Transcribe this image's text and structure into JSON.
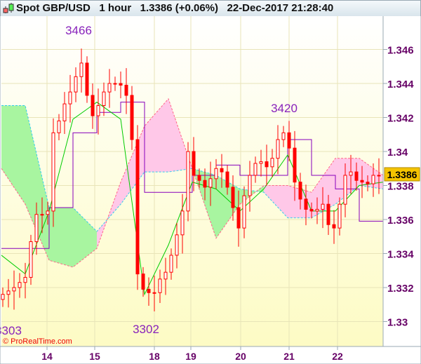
{
  "header": {
    "instrument": "Spot GBP/USD",
    "timeframe": "1 hour",
    "price": "1.3386 (+0.06%)",
    "datetime": "22-Dec-2017 21:28:40",
    "text": "Spot GBP/USD   1 hour   1.3386 (+0.06%)   22-Dec-2017 21:28:40"
  },
  "watermark": "© ProRealTime.com",
  "colors": {
    "up": "#00cc00",
    "down": "#ff0000",
    "cloud_green": "#a8f5a0",
    "cloud_pink": "#ffc8e8",
    "span_a": "#33ccee",
    "span_b": "#ff6688",
    "purple": "#8800bb",
    "green_line": "#00cc00",
    "price_tag": "#f5c400",
    "axis_text": "#660066",
    "annotation": "#8822bb"
  },
  "chart_data": {
    "type": "candlestick",
    "title": "Spot GBP/USD",
    "x_ticks": [
      "14",
      "15",
      "18",
      "19",
      "20",
      "21",
      "22"
    ],
    "y_ticks": [
      "1.346",
      "1.344",
      "1.342",
      "1.34",
      "1.338",
      "1.336",
      "1.334",
      "1.332",
      "1.33"
    ],
    "ylim": [
      1.3282,
      1.3475
    ],
    "grid": true,
    "closes": [
      1.3316,
      1.3318,
      1.332,
      1.3323,
      1.3326,
      1.3347,
      1.3363,
      1.3363,
      1.3365,
      1.3411,
      1.3418,
      1.3428,
      1.3435,
      1.3444,
      1.3452,
      1.3433,
      1.3421,
      1.3427,
      1.3435,
      1.344,
      1.344,
      1.3439,
      1.3433,
      1.3407,
      1.3328,
      1.3319,
      1.3317,
      1.3317,
      1.3325,
      1.3329,
      1.3339,
      1.3351,
      1.3365,
      1.34,
      1.3386,
      1.3383,
      1.3379,
      1.3384,
      1.339,
      1.3388,
      1.3379,
      1.3367,
      1.3355,
      1.3374,
      1.3386,
      1.3393,
      1.3394,
      1.3391,
      1.3396,
      1.3407,
      1.3411,
      1.3402,
      1.3382,
      1.3372,
      1.3366,
      1.3365,
      1.3366,
      1.3369,
      1.3357,
      1.3355,
      1.3369,
      1.3386,
      1.3388,
      1.3383,
      1.3382,
      1.3381,
      1.3386,
      1.3386
    ],
    "ichimoku": {
      "span_a": [
        1.3427,
        1.3427,
        1.3367,
        1.3367,
        1.3353,
        1.3369,
        1.3388,
        1.3388,
        1.339,
        1.3386,
        1.3378,
        1.3376,
        1.3361,
        1.3361,
        1.3369,
        1.338,
        1.3378
      ],
      "span_b": [
        1.339,
        1.3369,
        1.3336,
        1.3332,
        1.3343,
        1.3382,
        1.3415,
        1.3431,
        1.339,
        1.3349,
        1.3369,
        1.338,
        1.338,
        1.3376,
        1.3396,
        1.3396,
        1.3386
      ],
      "purple_line": [
        1.3343,
        1.3343,
        1.3367,
        1.3411,
        1.3423,
        1.3429,
        1.3376,
        1.3376,
        1.3386,
        1.3392,
        1.3386,
        1.3386,
        1.3407,
        1.3386,
        1.3378,
        1.3359,
        1.3365
      ],
      "green_line": [
        1.3339,
        1.3328,
        1.3365,
        1.3419,
        1.3429,
        1.3419,
        1.3316,
        1.3345,
        1.3382,
        1.3378,
        1.3365,
        1.3378,
        1.3398,
        1.3365,
        1.3365,
        1.338,
        1.3382
      ]
    },
    "annotations": [
      {
        "text": "3466",
        "price": 1.3466
      },
      {
        "text": "3420",
        "price": 1.342
      },
      {
        "text": "3303",
        "price": 1.3303
      },
      {
        "text": "3302",
        "price": 1.3302
      }
    ],
    "last_price_tag": "1.3386",
    "last_price": 1.3386
  }
}
